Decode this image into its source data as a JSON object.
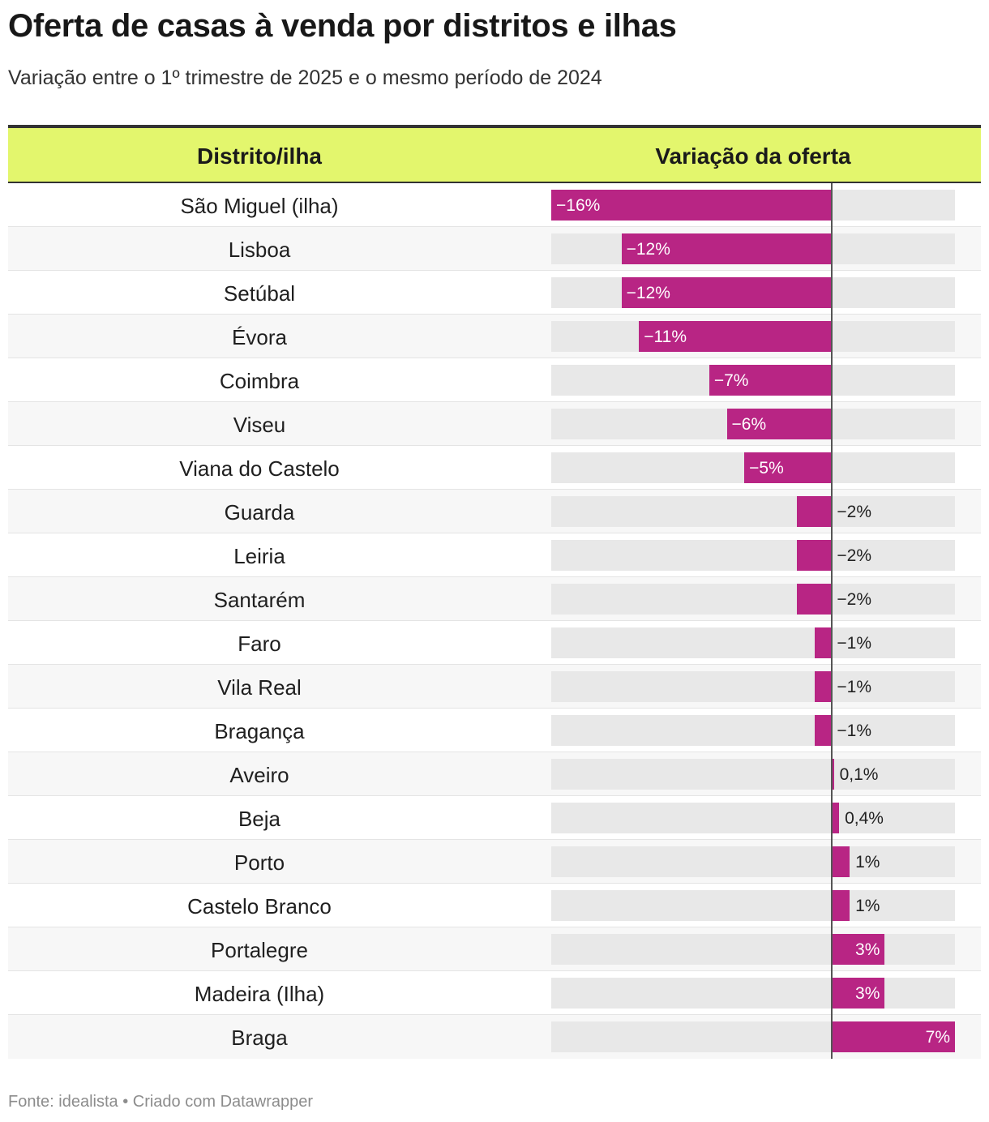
{
  "title": "Oferta de casas à venda por distritos e ilhas",
  "subtitle": "Variação entre o 1º trimestre de 2025 e o mesmo período de 2024",
  "header": {
    "name_col": "Distrito/ilha",
    "bar_col": "Variação da oferta"
  },
  "footer": "Fonte: idealista • Criado com Datawrapper",
  "colors": {
    "bar": "#b82584",
    "header_bg": "#e3f66d",
    "track": "#e8e8e8"
  },
  "chart_data": {
    "type": "bar",
    "orientation": "horizontal",
    "title": "Oferta de casas à venda por distritos e ilhas",
    "subtitle": "Variação entre o 1º trimestre de 2025 e o mesmo período de 2024",
    "xlim": [
      -16,
      7
    ],
    "unit": "%",
    "rows": [
      {
        "name": "São Miguel (ilha)",
        "value": -16,
        "label": "−16%"
      },
      {
        "name": "Lisboa",
        "value": -12,
        "label": "−12%"
      },
      {
        "name": "Setúbal",
        "value": -12,
        "label": "−12%"
      },
      {
        "name": "Évora",
        "value": -11,
        "label": "−11%"
      },
      {
        "name": "Coimbra",
        "value": -7,
        "label": "−7%"
      },
      {
        "name": "Viseu",
        "value": -6,
        "label": "−6%"
      },
      {
        "name": "Viana do Castelo",
        "value": -5,
        "label": "−5%"
      },
      {
        "name": "Guarda",
        "value": -2,
        "label": "−2%"
      },
      {
        "name": "Leiria",
        "value": -2,
        "label": "−2%"
      },
      {
        "name": "Santarém",
        "value": -2,
        "label": "−2%"
      },
      {
        "name": "Faro",
        "value": -1,
        "label": "−1%"
      },
      {
        "name": "Vila Real",
        "value": -1,
        "label": "−1%"
      },
      {
        "name": "Bragança",
        "value": -1,
        "label": "−1%"
      },
      {
        "name": "Aveiro",
        "value": 0.1,
        "label": "0,1%"
      },
      {
        "name": "Beja",
        "value": 0.4,
        "label": "0,4%"
      },
      {
        "name": "Porto",
        "value": 1,
        "label": "1%"
      },
      {
        "name": "Castelo Branco",
        "value": 1,
        "label": "1%"
      },
      {
        "name": "Portalegre",
        "value": 3,
        "label": "3%"
      },
      {
        "name": "Madeira (Ilha)",
        "value": 3,
        "label": "3%"
      },
      {
        "name": "Braga",
        "value": 7,
        "label": "7%"
      }
    ]
  }
}
